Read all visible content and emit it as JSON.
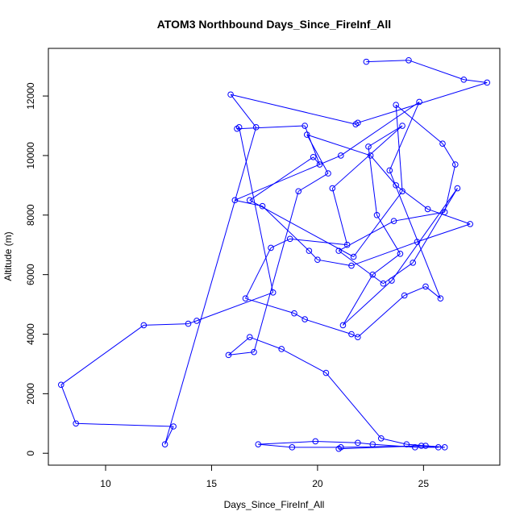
{
  "chart_data": {
    "type": "line",
    "title": "ATOM3 Northbound Days_Since_FireInf_All",
    "xlabel": "Days_Since_FireInf_All",
    "ylabel": "Altitude (m)",
    "xlim": [
      7.3,
      28.6
    ],
    "ylim": [
      -400,
      13600
    ],
    "xticks": [
      10,
      15,
      20,
      25
    ],
    "yticks": [
      0,
      2000,
      4000,
      6000,
      8000,
      10000,
      12000
    ],
    "grid": false,
    "series": [
      {
        "color": "#0000ff",
        "marker": "open-circle",
        "x": [
          22.3,
          24.3,
          26.9,
          28.0,
          21.9,
          21.8,
          15.9,
          17.1,
          12.8,
          13.2,
          8.6,
          7.9,
          11.8,
          13.9,
          14.3,
          17.9,
          16.3,
          16.2,
          19.4,
          20.1,
          19.8,
          16.8,
          21.7,
          24.0,
          23.7,
          25.9,
          26.5,
          26.0,
          23.6,
          21.0,
          23.1,
          24.5,
          26.6,
          23.5,
          21.2,
          22.6,
          23.9,
          22.8,
          22.4,
          24.0,
          20.7,
          21.4,
          18.7,
          17.8,
          16.6,
          18.9,
          19.4,
          21.6,
          21.9,
          24.1,
          25.1,
          25.8,
          23.4,
          24.8,
          21.1,
          16.1,
          17.4,
          19.6,
          20.0,
          21.6,
          24.7,
          27.2,
          25.2,
          23.7,
          22.5,
          19.5,
          20.5,
          19.1,
          17.0,
          15.8,
          16.8,
          18.3,
          20.4,
          23.0,
          24.2,
          26.0,
          25.1,
          21.1,
          18.8,
          17.2,
          19.9,
          21.9,
          22.6,
          24.6,
          25.7,
          24.9,
          21.0
        ],
        "y": [
          13150,
          13200,
          12550,
          12450,
          11100,
          11050,
          12050,
          10950,
          300,
          900,
          1000,
          2300,
          4300,
          4350,
          4450,
          5400,
          10950,
          10900,
          11000,
          9700,
          9950,
          8500,
          6600,
          8800,
          11700,
          10400,
          9700,
          8100,
          7800,
          6800,
          5700,
          6400,
          8900,
          5800,
          4300,
          6000,
          6700,
          8000,
          10300,
          11000,
          8900,
          7000,
          7200,
          6900,
          5200,
          4700,
          4500,
          4000,
          3900,
          5300,
          5600,
          5200,
          9500,
          11800,
          10000,
          8500,
          8300,
          6800,
          6500,
          6300,
          7100,
          7700,
          8200,
          9000,
          10000,
          10700,
          9400,
          8800,
          3400,
          3300,
          3900,
          3500,
          2700,
          500,
          300,
          200,
          250,
          200,
          200,
          300,
          400,
          350,
          300,
          200,
          200,
          250,
          150
        ],
        "values_note": ""
      }
    ]
  }
}
